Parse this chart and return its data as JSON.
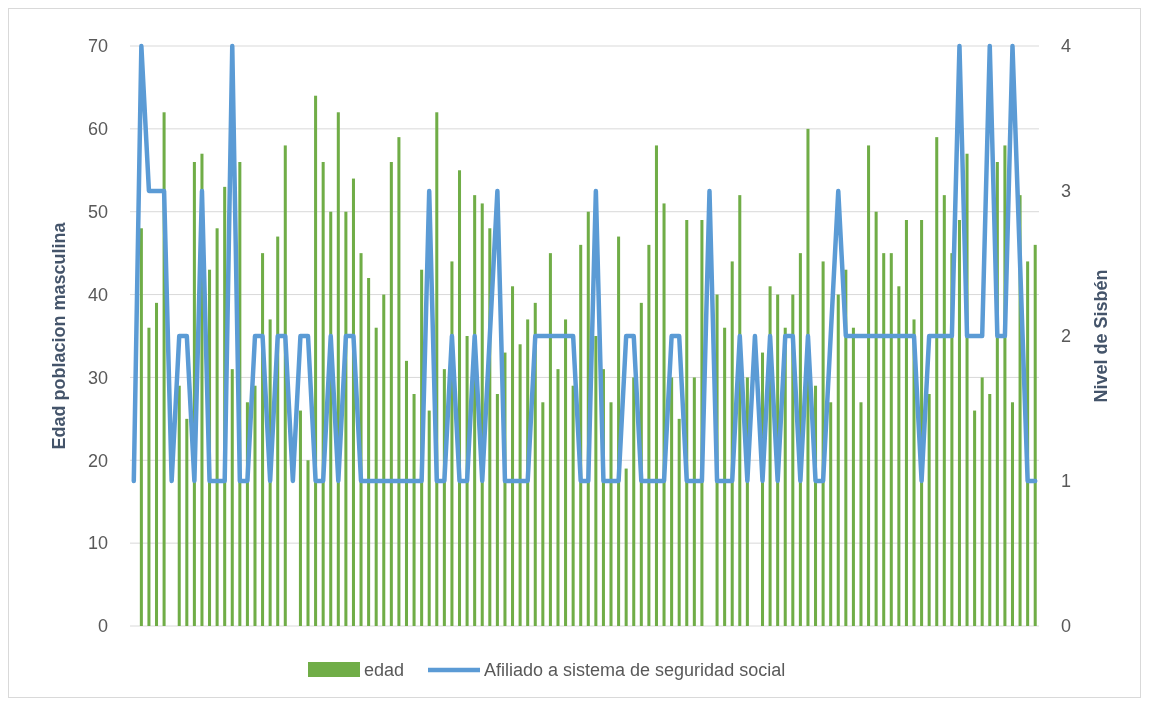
{
  "chart_data": {
    "type": "bar",
    "ylabel": "Edad poblacion masculina",
    "y2label": "Nivel de Sisbén",
    "categories": [
      null,
      null,
      null,
      null,
      null,
      null,
      null,
      null,
      null,
      null,
      null,
      null,
      null,
      null,
      null,
      null,
      null,
      null,
      null,
      null,
      null,
      null,
      null,
      null,
      null,
      null,
      null,
      null,
      null,
      null,
      null,
      null,
      null,
      null,
      null,
      null,
      null,
      null,
      null,
      null,
      null,
      null,
      null,
      null,
      null,
      null,
      null,
      null,
      null,
      null,
      null,
      null,
      null,
      null,
      null,
      null,
      null,
      null,
      null,
      null,
      null,
      null,
      null,
      null,
      null,
      null,
      null,
      null,
      null,
      null,
      null,
      null,
      null,
      null,
      null,
      null,
      null,
      null,
      null,
      null,
      null,
      null,
      null,
      null,
      null,
      null,
      null,
      null,
      null,
      null,
      null,
      null,
      null,
      null,
      null,
      null,
      null,
      null,
      null,
      null,
      null,
      null,
      null,
      null,
      null,
      null,
      null,
      null,
      null,
      null,
      null,
      null,
      null,
      null,
      null,
      null,
      null,
      null,
      null,
      null
    ],
    "series": [
      {
        "name": "edad",
        "color": "#70ad47",
        "values": [
          null,
          48,
          36,
          39,
          62,
          null,
          29,
          25,
          56,
          57,
          43,
          48,
          53,
          31,
          56,
          27,
          29,
          45,
          37,
          47,
          58,
          null,
          26,
          20,
          64,
          56,
          50,
          62,
          50,
          54,
          45,
          42,
          36,
          40,
          56,
          59,
          32,
          28,
          43,
          26,
          62,
          31,
          44,
          55,
          35,
          52,
          51,
          48,
          28,
          33,
          41,
          34,
          37,
          39,
          27,
          45,
          31,
          37,
          29,
          46,
          50,
          35,
          31,
          27,
          47,
          19,
          30,
          39,
          46,
          58,
          51,
          30,
          25,
          49,
          30,
          49,
          null,
          40,
          36,
          44,
          52,
          30,
          null,
          33,
          41,
          40,
          36,
          40,
          45,
          60,
          29,
          44,
          27,
          40,
          43,
          36,
          27,
          58,
          50,
          45,
          45,
          41,
          49,
          37,
          49,
          28,
          59,
          52,
          45,
          49,
          57,
          26,
          30,
          28,
          56,
          58,
          27,
          52,
          44,
          46
        ]
      },
      {
        "name": "Afiliado a sistema de seguridad social",
        "type": "line",
        "axis": "y2",
        "color": "#5b9bd5",
        "values": [
          1,
          4,
          3,
          3,
          3,
          1,
          2,
          2,
          1,
          3,
          1,
          1,
          1,
          4,
          1,
          1,
          2,
          2,
          1,
          2,
          2,
          1,
          2,
          2,
          1,
          1,
          2,
          1,
          2,
          2,
          1,
          1,
          1,
          1,
          1,
          1,
          1,
          1,
          1,
          3,
          1,
          1,
          2,
          1,
          1,
          2,
          1,
          2,
          3,
          1,
          1,
          1,
          1,
          2,
          2,
          2,
          2,
          2,
          2,
          1,
          1,
          3,
          1,
          1,
          1,
          2,
          2,
          1,
          1,
          1,
          1,
          2,
          2,
          1,
          1,
          1,
          3,
          1,
          1,
          1,
          2,
          1,
          2,
          1,
          2,
          1,
          2,
          2,
          1,
          2,
          1,
          1,
          2,
          3,
          2,
          2,
          2,
          2,
          2,
          2,
          2,
          2,
          2,
          2,
          1,
          2,
          2,
          2,
          2,
          4,
          2,
          2,
          2,
          4,
          2,
          2,
          4,
          2.5,
          1,
          1
        ]
      }
    ],
    "ylim": [
      0,
      70
    ],
    "yticks": [
      0,
      10,
      20,
      30,
      40,
      50,
      60,
      70
    ],
    "y2lim": [
      0,
      4
    ],
    "y2ticks": [
      0,
      1,
      2,
      3,
      4
    ],
    "grid": "y",
    "legend": "bottom",
    "line_style": "solid",
    "marker": "none"
  }
}
